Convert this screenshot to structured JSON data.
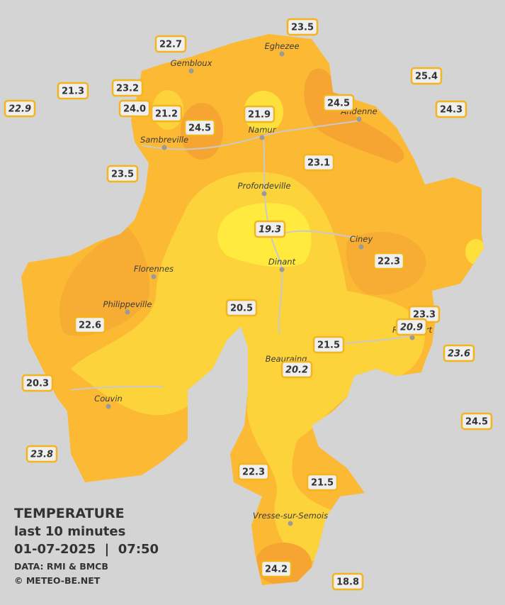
{
  "legend": {
    "title": "TEMPERATURE",
    "period": "last 10 minutes",
    "timestamp": "01-07-2025  |  07:50",
    "source": "DATA: RMI & BMCB",
    "credit": "© METEO-BE.NET"
  },
  "places": [
    "Eghezee",
    "Gembloux",
    "Namur",
    "Andenne",
    "Sambreville",
    "Profondeville",
    "Ciney",
    "Dinant",
    "Florennes",
    "Philippeville",
    "Rochefort",
    "Beauraing",
    "Couvin",
    "Vresse-sur-Semois"
  ],
  "stations": [
    {
      "value": "23.5"
    },
    {
      "value": "22.7"
    },
    {
      "value": "25.4"
    },
    {
      "value": "21.3"
    },
    {
      "value": "23.2"
    },
    {
      "value": "22.9",
      "italic": true
    },
    {
      "value": "24.0"
    },
    {
      "value": "21.2"
    },
    {
      "value": "24.5"
    },
    {
      "value": "21.9"
    },
    {
      "value": "24.5"
    },
    {
      "value": "24.3"
    },
    {
      "value": "23.5"
    },
    {
      "value": "23.1"
    },
    {
      "value": "19.3",
      "italic": true
    },
    {
      "value": "22.3"
    },
    {
      "value": "20.5"
    },
    {
      "value": "23.3"
    },
    {
      "value": "20.9",
      "italic": true
    },
    {
      "value": "22.6"
    },
    {
      "value": "21.5"
    },
    {
      "value": "23.6",
      "italic": true
    },
    {
      "value": "20.2",
      "italic": true
    },
    {
      "value": "20.3"
    },
    {
      "value": "24.5"
    },
    {
      "value": "23.8",
      "italic": true
    },
    {
      "value": "22.3"
    },
    {
      "value": "21.5"
    },
    {
      "value": "24.2"
    },
    {
      "value": "18.8"
    }
  ]
}
